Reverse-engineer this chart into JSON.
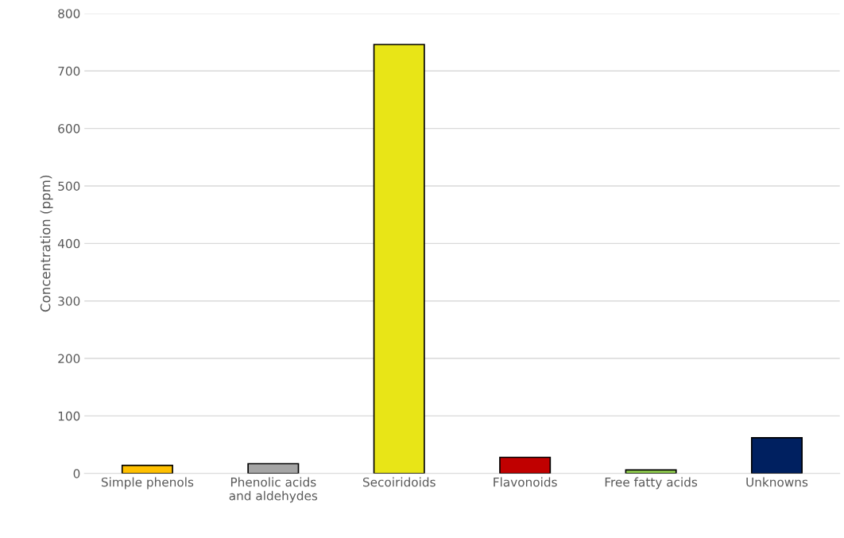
{
  "chart_data": {
    "type": "bar",
    "ylabel": "Concentration (ppm)",
    "categories": [
      "Simple phenols",
      "Phenolic acids\nand aldehydes",
      "Secoiridoids",
      "Flavonoids",
      "Free fatty acids",
      "Unknowns"
    ],
    "values": [
      14,
      17,
      746,
      28,
      6,
      62
    ],
    "colors": [
      "#ffc000",
      "#a5a5a5",
      "#e8e517",
      "#c00000",
      "#92d050",
      "#002060"
    ],
    "ylim": [
      0,
      800
    ],
    "yticks": [
      0,
      100,
      200,
      300,
      400,
      500,
      600,
      700,
      800
    ],
    "grid": "y"
  }
}
